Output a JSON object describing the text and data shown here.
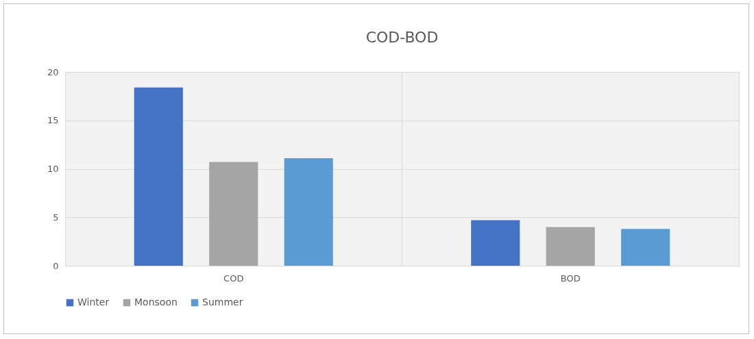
{
  "chart_data": {
    "type": "bar",
    "title": "COD-BOD",
    "categories": [
      "COD",
      "BOD"
    ],
    "series": [
      {
        "name": "Winter",
        "color": "#4472c4",
        "values": [
          18.4,
          4.7
        ]
      },
      {
        "name": "Monsoon",
        "color": "#a5a5a5",
        "values": [
          10.7,
          4.0
        ]
      },
      {
        "name": "Summer",
        "color": "#5b9bd5",
        "values": [
          11.1,
          3.8
        ]
      }
    ],
    "ylim": [
      0,
      20
    ],
    "yticks": [
      0,
      5,
      10,
      15,
      20
    ],
    "grid": true,
    "legend": "bottom"
  }
}
